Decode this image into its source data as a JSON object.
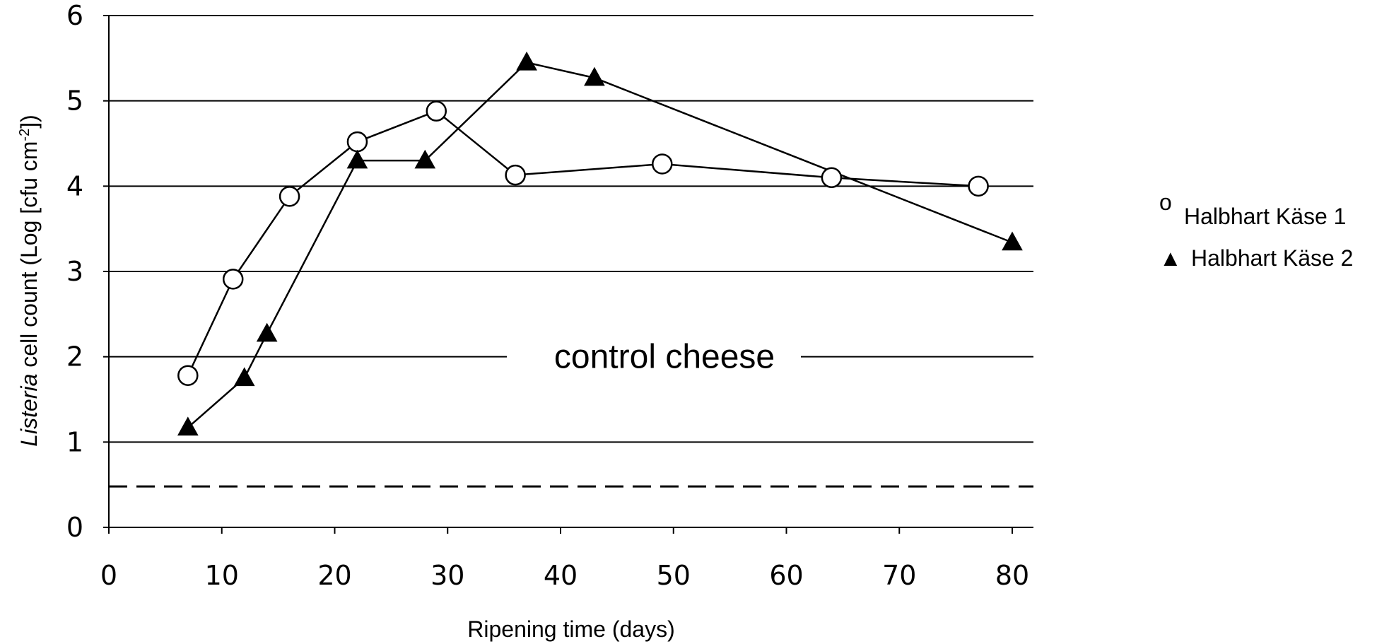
{
  "chart_data": {
    "type": "line",
    "xlabel": "Ripening time (days)",
    "ylabel_italic": "Listeria",
    "ylabel_rest": " cell count (Log [cfu cm",
    "ylabel_sup": "-2",
    "ylabel_end": "])",
    "xlim": [
      0,
      80
    ],
    "ylim": [
      0,
      6
    ],
    "x_ticks": [
      "0",
      "10",
      "20",
      "30",
      "40",
      "50",
      "60",
      "70",
      "80"
    ],
    "y_ticks": [
      "0",
      "1",
      "2",
      "3",
      "4",
      "5",
      "6"
    ],
    "grid": "horizontal",
    "annotation": "control cheese",
    "control_level": 2,
    "detection_limit": 0.48,
    "legend_position": "right",
    "series": [
      {
        "name": "Halbhart Käse 1",
        "legend_marker": "o",
        "marker": "circle",
        "x": [
          7,
          11,
          16,
          22,
          29,
          36,
          49,
          64,
          77
        ],
        "y": [
          1.78,
          2.91,
          3.88,
          4.52,
          4.88,
          4.13,
          4.26,
          4.1,
          4.0
        ]
      },
      {
        "name": "Halbhart Käse 2",
        "legend_marker": "▲",
        "marker": "triangle",
        "x": [
          7,
          12,
          14,
          22,
          28,
          37,
          43,
          80
        ],
        "y": [
          1.17,
          1.75,
          2.27,
          4.3,
          4.3,
          5.45,
          5.27,
          3.34
        ]
      }
    ]
  }
}
